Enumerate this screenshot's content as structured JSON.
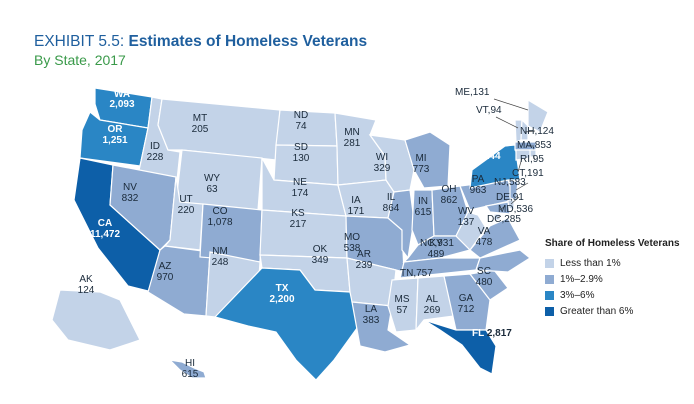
{
  "header": {
    "exhibit": "EXHIBIT 5.5:",
    "title": "Estimates of Homeless Veterans",
    "subtitle": "By State, 2017"
  },
  "legend": {
    "title": "Share of Homeless Veterans",
    "items": [
      {
        "label": "Less than 1%",
        "color": "#c3d3e8"
      },
      {
        "label": "1%–2.9%",
        "color": "#8fabd2"
      },
      {
        "label": "3%–6%",
        "color": "#2a86c5"
      },
      {
        "label": "Greater than 6%",
        "color": "#0d5fa8"
      }
    ]
  },
  "states": [
    {
      "abbr": "WA",
      "value": "2,093",
      "cat": 2
    },
    {
      "abbr": "OR",
      "value": "1,251",
      "cat": 2
    },
    {
      "abbr": "CA",
      "value": "11,472",
      "cat": 3
    },
    {
      "abbr": "ID",
      "value": "228",
      "cat": 0
    },
    {
      "abbr": "NV",
      "value": "832",
      "cat": 1
    },
    {
      "abbr": "MT",
      "value": "205",
      "cat": 0
    },
    {
      "abbr": "WY",
      "value": "63",
      "cat": 0
    },
    {
      "abbr": "UT",
      "value": "220",
      "cat": 0
    },
    {
      "abbr": "AZ",
      "value": "970",
      "cat": 1
    },
    {
      "abbr": "CO",
      "value": "1,078",
      "cat": 1
    },
    {
      "abbr": "NM",
      "value": "248",
      "cat": 0
    },
    {
      "abbr": "ND",
      "value": "74",
      "cat": 0
    },
    {
      "abbr": "SD",
      "value": "130",
      "cat": 0
    },
    {
      "abbr": "NE",
      "value": "174",
      "cat": 0
    },
    {
      "abbr": "KS",
      "value": "217",
      "cat": 0
    },
    {
      "abbr": "OK",
      "value": "349",
      "cat": 0
    },
    {
      "abbr": "TX",
      "value": "2,200",
      "cat": 2
    },
    {
      "abbr": "MN",
      "value": "281",
      "cat": 0
    },
    {
      "abbr": "IA",
      "value": "171",
      "cat": 0
    },
    {
      "abbr": "MO",
      "value": "538",
      "cat": 1
    },
    {
      "abbr": "AR",
      "value": "239",
      "cat": 0
    },
    {
      "abbr": "LA",
      "value": "383",
      "cat": 1
    },
    {
      "abbr": "WI",
      "value": "329",
      "cat": 0
    },
    {
      "abbr": "IL",
      "value": "864",
      "cat": 1
    },
    {
      "abbr": "MI",
      "value": "773",
      "cat": 1
    },
    {
      "abbr": "IN",
      "value": "615",
      "cat": 1
    },
    {
      "abbr": "OH",
      "value": "862",
      "cat": 1
    },
    {
      "abbr": "KY",
      "value": "489",
      "cat": 1
    },
    {
      "abbr": "TN",
      "value": "757",
      "cat": 1
    },
    {
      "abbr": "MS",
      "value": "57",
      "cat": 0
    },
    {
      "abbr": "AL",
      "value": "269",
      "cat": 0
    },
    {
      "abbr": "GA",
      "value": "712",
      "cat": 1
    },
    {
      "abbr": "FL",
      "value": "2,817",
      "cat": 3
    },
    {
      "abbr": "SC",
      "value": "480",
      "cat": 1
    },
    {
      "abbr": "NC",
      "value": "931",
      "cat": 1
    },
    {
      "abbr": "VA",
      "value": "478",
      "cat": 1
    },
    {
      "abbr": "WV",
      "value": "137",
      "cat": 0
    },
    {
      "abbr": "PA",
      "value": "963",
      "cat": 1
    },
    {
      "abbr": "NY",
      "value": "1,244",
      "cat": 2
    },
    {
      "abbr": "ME",
      "value": "131",
      "cat": 0
    },
    {
      "abbr": "VT",
      "value": "94",
      "cat": 0
    },
    {
      "abbr": "NH",
      "value": "124",
      "cat": 0
    },
    {
      "abbr": "MA",
      "value": "853",
      "cat": 1
    },
    {
      "abbr": "RI",
      "value": "95",
      "cat": 0
    },
    {
      "abbr": "CT",
      "value": "191",
      "cat": 0
    },
    {
      "abbr": "NJ",
      "value": "583",
      "cat": 1
    },
    {
      "abbr": "DE",
      "value": "91",
      "cat": 0
    },
    {
      "abbr": "MD",
      "value": "536",
      "cat": 1
    },
    {
      "abbr": "DC",
      "value": "285",
      "cat": 0
    },
    {
      "abbr": "AK",
      "value": "124",
      "cat": 0
    },
    {
      "abbr": "HI",
      "value": "615",
      "cat": 1
    }
  ]
}
